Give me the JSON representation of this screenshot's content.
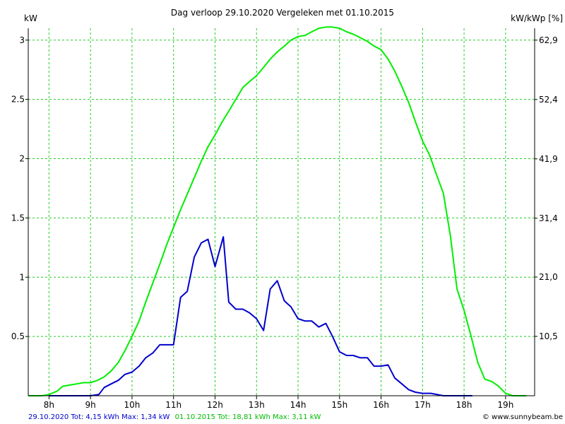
{
  "chart_data": {
    "type": "line",
    "title": "Dag  verloop 29.10.2020   Vergeleken met 01.10.2015",
    "ylabel_left": "kW",
    "ylabel_right": "kW/kWp [%]",
    "xlim": [
      7.5,
      19.7
    ],
    "ylim": [
      0,
      3.1
    ],
    "x_ticks": [
      8,
      9,
      10,
      11,
      12,
      13,
      14,
      15,
      16,
      17,
      18,
      19
    ],
    "x_tick_labels": [
      "8h",
      "9h",
      "10h",
      "11h",
      "12h",
      "13h",
      "14h",
      "15h",
      "16h",
      "17h",
      "18h",
      "19h"
    ],
    "y_ticks": [
      0.5,
      1,
      1.5,
      2,
      2.5,
      3
    ],
    "y_tick_labels": [
      "0.5",
      "1",
      "1.5",
      "2",
      "2.5",
      "3"
    ],
    "y2_ticks": [
      10.5,
      21.0,
      31.4,
      41.9,
      52.4,
      62.9
    ],
    "y2_tick_labels": [
      "10,5",
      "21,0",
      "31,4",
      "41,9",
      "52,4",
      "62,9"
    ],
    "y2_lim": [
      0,
      65.0
    ],
    "grid": true,
    "series": [
      {
        "name": "29.10.2020",
        "color": "#0000cc",
        "points": [
          [
            8.0,
            0.0
          ],
          [
            9.0,
            0.0
          ],
          [
            9.2,
            0.01
          ],
          [
            9.33,
            0.07
          ],
          [
            9.5,
            0.1
          ],
          [
            9.67,
            0.13
          ],
          [
            9.83,
            0.18
          ],
          [
            10.0,
            0.2
          ],
          [
            10.17,
            0.25
          ],
          [
            10.33,
            0.32
          ],
          [
            10.5,
            0.36
          ],
          [
            10.67,
            0.43
          ],
          [
            10.83,
            0.43
          ],
          [
            11.0,
            0.43
          ],
          [
            11.17,
            0.83
          ],
          [
            11.33,
            0.88
          ],
          [
            11.5,
            1.17
          ],
          [
            11.67,
            1.29
          ],
          [
            11.83,
            1.32
          ],
          [
            12.0,
            1.09
          ],
          [
            12.2,
            1.34
          ],
          [
            12.33,
            0.79
          ],
          [
            12.5,
            0.73
          ],
          [
            12.67,
            0.73
          ],
          [
            12.83,
            0.7
          ],
          [
            13.0,
            0.65
          ],
          [
            13.17,
            0.55
          ],
          [
            13.33,
            0.9
          ],
          [
            13.5,
            0.97
          ],
          [
            13.67,
            0.8
          ],
          [
            13.83,
            0.75
          ],
          [
            14.0,
            0.65
          ],
          [
            14.17,
            0.63
          ],
          [
            14.33,
            0.63
          ],
          [
            14.5,
            0.58
          ],
          [
            14.67,
            0.61
          ],
          [
            14.83,
            0.5
          ],
          [
            15.0,
            0.37
          ],
          [
            15.17,
            0.34
          ],
          [
            15.33,
            0.34
          ],
          [
            15.5,
            0.32
          ],
          [
            15.67,
            0.32
          ],
          [
            15.83,
            0.25
          ],
          [
            16.0,
            0.25
          ],
          [
            16.17,
            0.26
          ],
          [
            16.33,
            0.15
          ],
          [
            16.5,
            0.1
          ],
          [
            16.67,
            0.05
          ],
          [
            16.83,
            0.03
          ],
          [
            17.0,
            0.02
          ],
          [
            17.2,
            0.02
          ],
          [
            17.5,
            0.0
          ],
          [
            18.2,
            0.0
          ]
        ]
      },
      {
        "name": "01.10.2015",
        "color": "#00ee00",
        "points": [
          [
            7.5,
            0.0
          ],
          [
            7.83,
            0.0
          ],
          [
            8.0,
            0.01
          ],
          [
            8.2,
            0.04
          ],
          [
            8.33,
            0.08
          ],
          [
            8.5,
            0.09
          ],
          [
            8.67,
            0.1
          ],
          [
            8.83,
            0.11
          ],
          [
            9.0,
            0.11
          ],
          [
            9.17,
            0.13
          ],
          [
            9.33,
            0.16
          ],
          [
            9.5,
            0.21
          ],
          [
            9.67,
            0.28
          ],
          [
            9.83,
            0.38
          ],
          [
            10.0,
            0.5
          ],
          [
            10.17,
            0.63
          ],
          [
            10.33,
            0.79
          ],
          [
            10.5,
            0.95
          ],
          [
            10.67,
            1.11
          ],
          [
            10.83,
            1.27
          ],
          [
            11.0,
            1.42
          ],
          [
            11.17,
            1.57
          ],
          [
            11.33,
            1.7
          ],
          [
            11.5,
            1.84
          ],
          [
            11.67,
            1.98
          ],
          [
            11.83,
            2.1
          ],
          [
            12.0,
            2.2
          ],
          [
            12.17,
            2.31
          ],
          [
            12.33,
            2.4
          ],
          [
            12.5,
            2.5
          ],
          [
            12.67,
            2.6
          ],
          [
            12.83,
            2.65
          ],
          [
            13.0,
            2.7
          ],
          [
            13.17,
            2.77
          ],
          [
            13.33,
            2.84
          ],
          [
            13.5,
            2.9
          ],
          [
            13.67,
            2.95
          ],
          [
            13.83,
            3.0
          ],
          [
            14.0,
            3.03
          ],
          [
            14.17,
            3.04
          ],
          [
            14.33,
            3.07
          ],
          [
            14.5,
            3.1
          ],
          [
            14.67,
            3.11
          ],
          [
            14.83,
            3.11
          ],
          [
            15.0,
            3.1
          ],
          [
            15.17,
            3.07
          ],
          [
            15.33,
            3.05
          ],
          [
            15.5,
            3.02
          ],
          [
            15.67,
            2.99
          ],
          [
            15.83,
            2.95
          ],
          [
            16.0,
            2.92
          ],
          [
            16.17,
            2.84
          ],
          [
            16.33,
            2.74
          ],
          [
            16.5,
            2.61
          ],
          [
            16.67,
            2.47
          ],
          [
            16.83,
            2.31
          ],
          [
            17.0,
            2.15
          ],
          [
            17.17,
            2.03
          ],
          [
            17.33,
            1.87
          ],
          [
            17.5,
            1.71
          ],
          [
            17.67,
            1.35
          ],
          [
            17.83,
            0.9
          ],
          [
            18.0,
            0.72
          ],
          [
            18.17,
            0.5
          ],
          [
            18.33,
            0.28
          ],
          [
            18.5,
            0.14
          ],
          [
            18.67,
            0.12
          ],
          [
            18.83,
            0.08
          ],
          [
            19.0,
            0.02
          ],
          [
            19.17,
            0.0
          ],
          [
            19.5,
            0.0
          ]
        ]
      }
    ]
  },
  "footer": {
    "series1_summary": "29.10.2020 Tot: 4,15 kWh Max: 1,34 kW",
    "series2_summary": "01.10.2015 Tot: 18,81 kWh Max: 3,11 kW",
    "credit": "© www.sunnybeam.be"
  }
}
